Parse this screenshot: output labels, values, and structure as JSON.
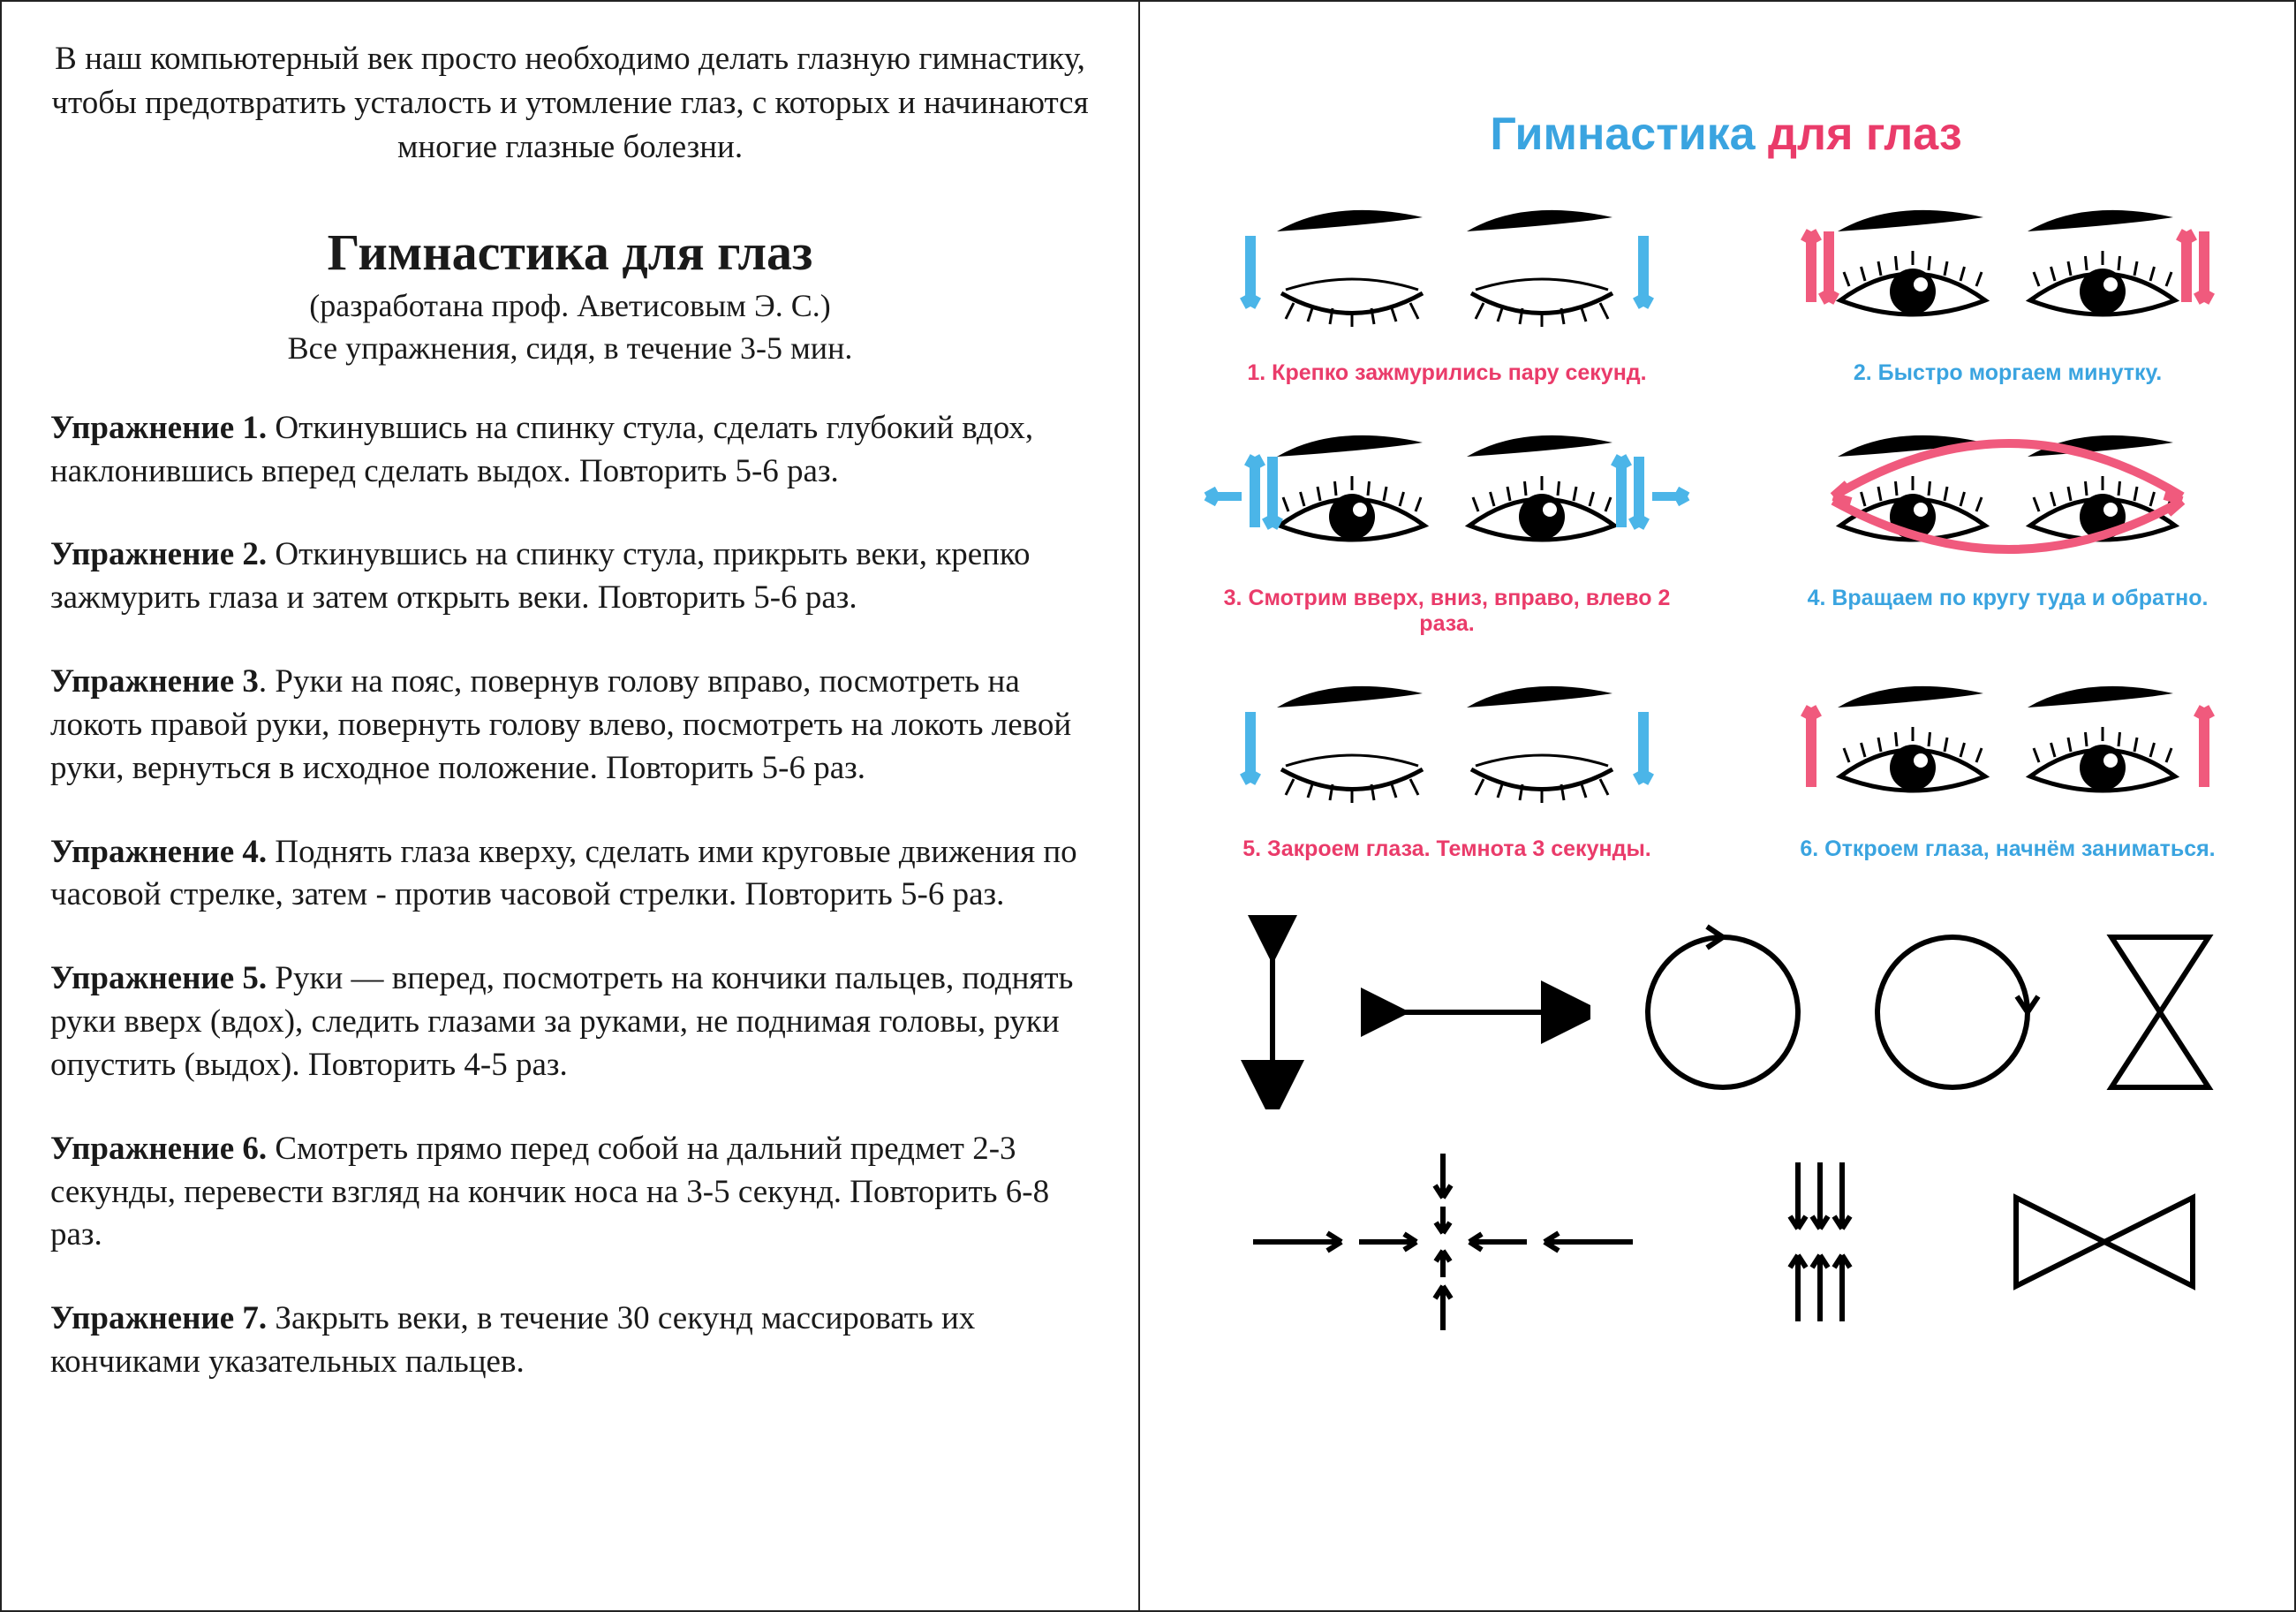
{
  "colors": {
    "text": "#1a1a1a",
    "blue": "#3aa4e0",
    "pink": "#ea3b6a",
    "arrow_blue": "#4bb5e8",
    "arrow_pink": "#f05a7d",
    "eye_stroke": "#000000",
    "diagram_stroke": "#000000",
    "background": "#ffffff"
  },
  "left": {
    "intro": "В наш компьютерный век  просто необходимо делать глазную гимнастику, чтобы предотвратить усталость и утомление глаз, с которых и начинаются многие глазные болезни.",
    "title": "Гимнастика для глаз",
    "subtitle1": "(разработана проф. Аветисовым Э. С.)",
    "subtitle2": "Все упражнения, сидя, в течение 3-5 мин.",
    "exercises": [
      {
        "label": "Упражнение 1.",
        "text": " Откинувшись на спинку стула, сделать глубокий вдох, наклонившись вперед сделать выдох. Повторить 5-6 раз."
      },
      {
        "label": "Упражнение 2.",
        "text": " Откинувшись на спинку стула, прикрыть веки, крепко зажмурить глаза и затем открыть веки. Повторить 5-6 раз."
      },
      {
        "label": "Упражнение 3",
        "text": ". Руки на пояс, повернув голову вправо, посмотреть на локоть правой руки, повернуть голову влево, посмотреть на локоть левой руки, вернуться в исходное положение. Повторить 5-6 раз."
      },
      {
        "label": "Упражнение 4.",
        "text": " Поднять глаза кверху, сделать ими круговые движения по часовой стрелке, затем - против часовой стрелки. Повторить 5-6 раз."
      },
      {
        "label": "Упражнение 5.",
        "text": " Руки — вперед, посмотреть на кончики пальцев, поднять руки вверх (вдох), следить глазами за руками, не поднимая головы, руки опустить (выдох). Повторить 4-5 раз."
      },
      {
        "label": "Упражнение 6.",
        "text": " Смотреть прямо перед собой на дальний предмет 2-3 секунды, перевести взгляд на кончик носа на 3-5 секунд. Повторить 6-8 раз."
      },
      {
        "label": "Упражнение 7.",
        "text": " Закрыть веки, в течение 30 секунд массировать их кончиками указательных пальцев."
      }
    ]
  },
  "right": {
    "title_w1": "Гимнастика",
    "title_w2": "для глаз",
    "cells": [
      {
        "caption": "1. Крепко зажмурились пару секунд.",
        "color": "pink",
        "icon": "closed",
        "arrows": "blue_down_sides"
      },
      {
        "caption": "2. Быстро моргаем минутку.",
        "color": "blue",
        "icon": "open",
        "arrows": "pink_updown_sides"
      },
      {
        "caption": "3. Смотрим вверх, вниз, вправо, влево 2 раза.",
        "color": "pink",
        "icon": "open",
        "arrows": "blue_cross"
      },
      {
        "caption": "4. Вращаем по кругу туда и обратно.",
        "color": "blue",
        "icon": "open",
        "arrows": "pink_circle"
      },
      {
        "caption": "5. Закроем глаза. Темнота 3 секунды.",
        "color": "pink",
        "icon": "closed",
        "arrows": "blue_down_sides"
      },
      {
        "caption": "6. Откроем глаза, начнём заниматься.",
        "color": "blue",
        "icon": "open",
        "arrows": "pink_up_sides"
      }
    ],
    "diagrams": {
      "stroke_width": 6,
      "circle_radius": 85,
      "arrow_head": 16
    }
  }
}
